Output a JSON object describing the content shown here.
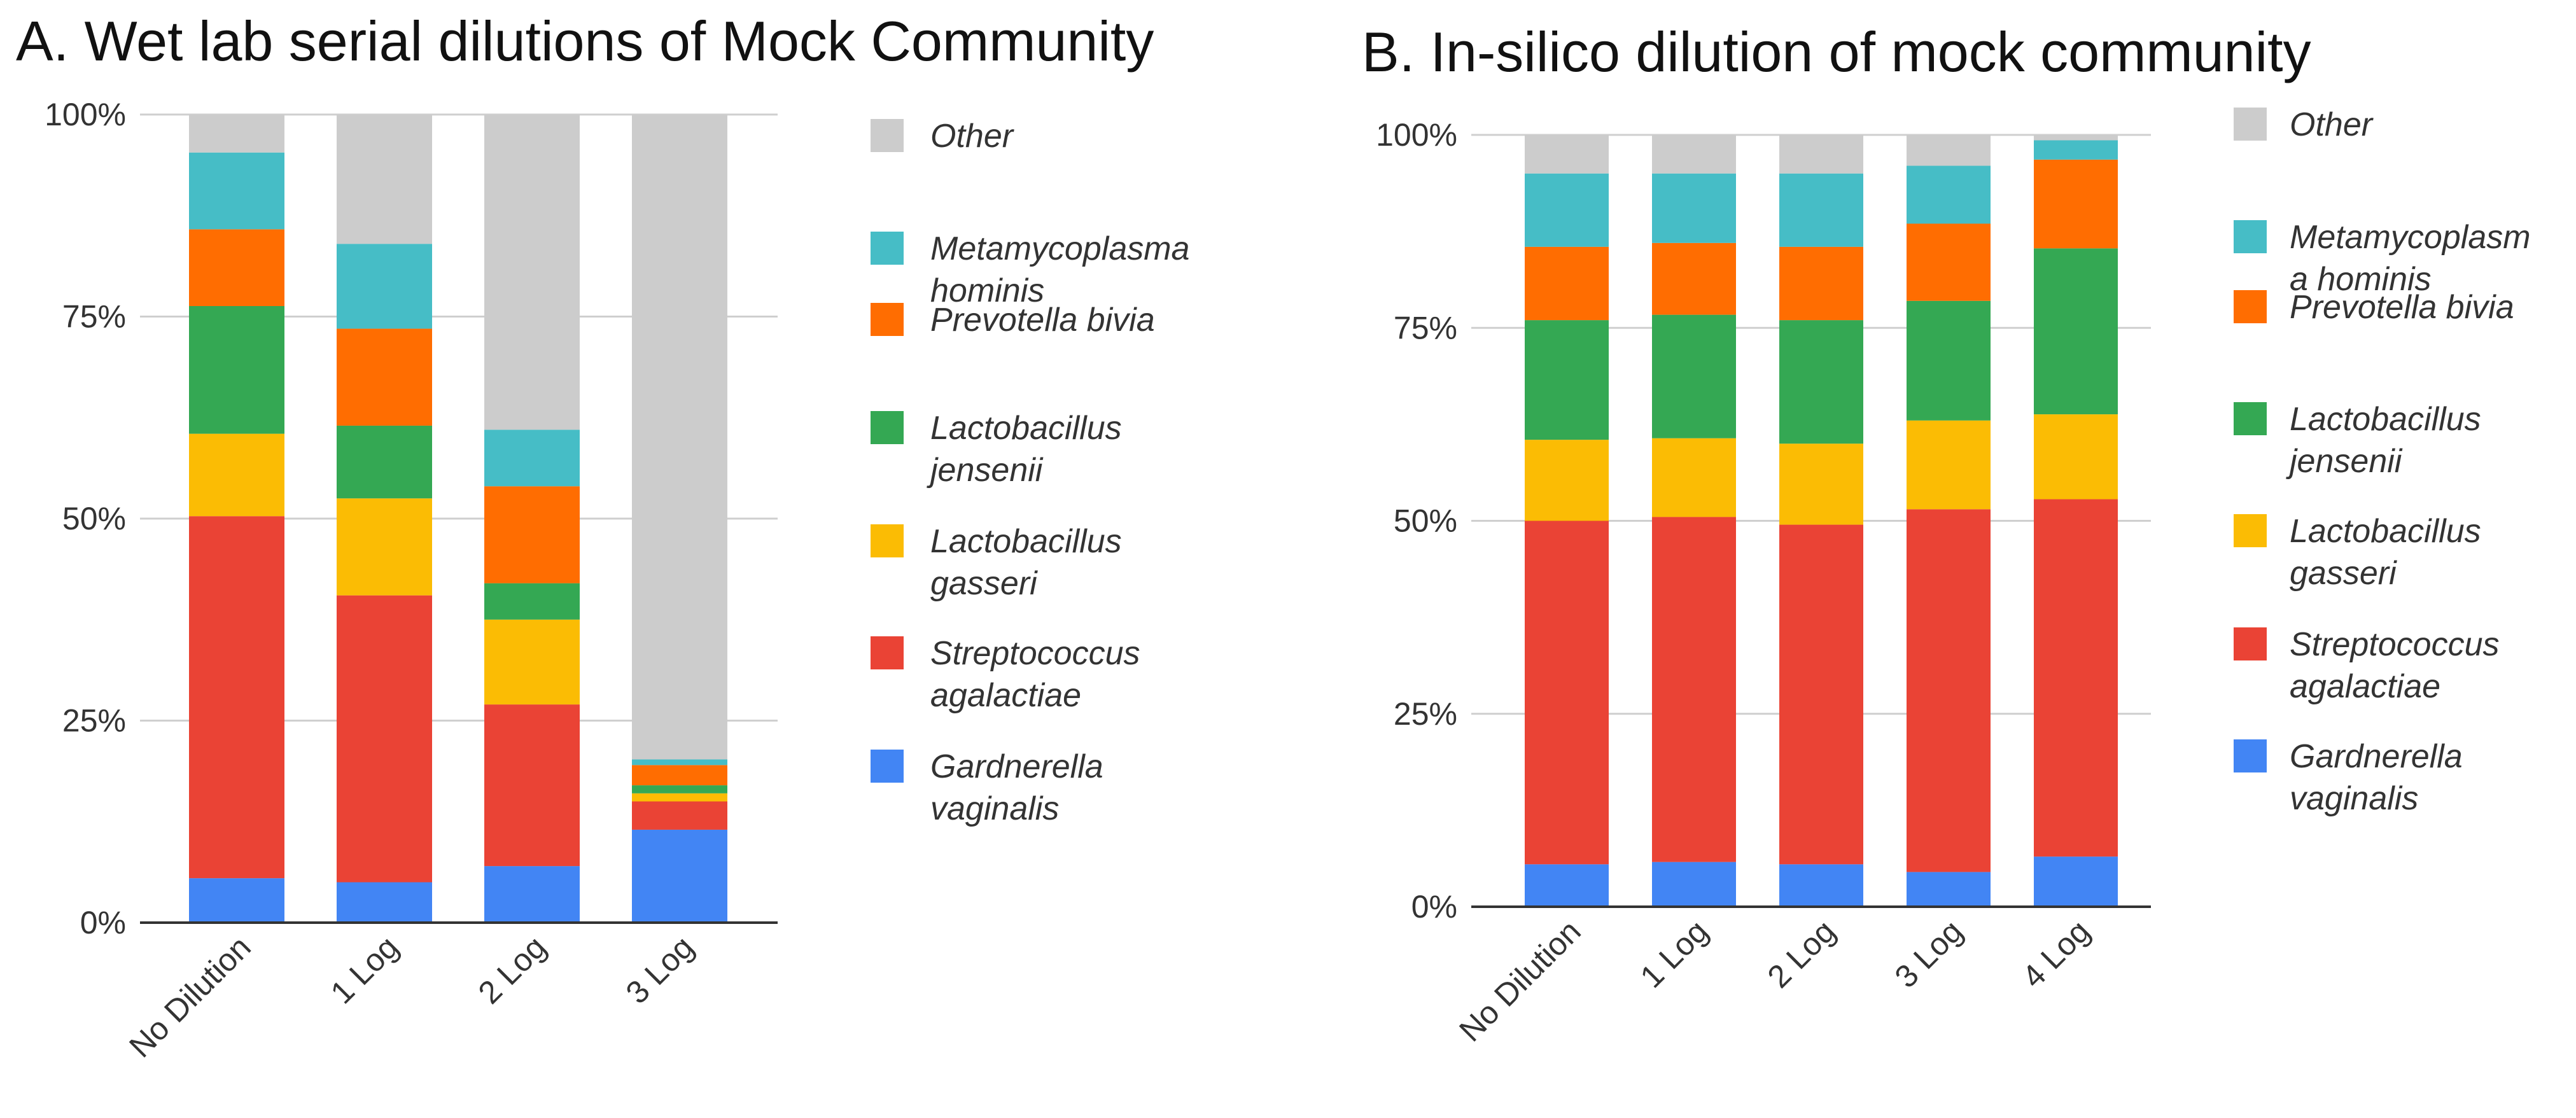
{
  "chart_data": [
    {
      "type": "bar",
      "stacked": true,
      "title": "A. Wet lab serial dilutions of Mock Community",
      "categories": [
        "No Dilution",
        "1 Log",
        "2 Log",
        "3 Log"
      ],
      "y_ticks": [
        "0%",
        "25%",
        "50%",
        "75%",
        "100%"
      ],
      "ylim": [
        0,
        100
      ],
      "series": [
        {
          "name": "Gardnerella vaginalis",
          "legend_lines": [
            "Gardnerella",
            "vaginalis"
          ],
          "color": "#4285F4",
          "values": [
            5.5,
            5.0,
            7.0,
            11.5
          ]
        },
        {
          "name": "Streptococcus agalactiae",
          "legend_lines": [
            "Streptococcus",
            "agalactiae"
          ],
          "color": "#EA4335",
          "values": [
            44.8,
            35.5,
            20.0,
            3.5
          ]
        },
        {
          "name": "Lactobacillus gasseri",
          "legend_lines": [
            "Lactobacillus",
            "gasseri"
          ],
          "color": "#FBBC04",
          "values": [
            10.2,
            12.0,
            10.5,
            1.0
          ]
        },
        {
          "name": "Lactobacillus jensenii",
          "legend_lines": [
            "Lactobacillus",
            "jensenii"
          ],
          "color": "#34A853",
          "values": [
            15.8,
            9.0,
            4.5,
            1.0
          ]
        },
        {
          "name": "Prevotella bivia",
          "legend_lines": [
            "Prevotella bivia"
          ],
          "color": "#FF6D01",
          "values": [
            9.5,
            12.0,
            12.0,
            2.5
          ]
        },
        {
          "name": "Metamycoplasma hominis",
          "legend_lines": [
            "Metamycoplasma",
            "hominis"
          ],
          "color": "#46BDC6",
          "values": [
            9.5,
            10.5,
            7.0,
            0.7
          ]
        },
        {
          "name": "Other",
          "legend_lines": [
            "Other"
          ],
          "color": "#CCCCCC",
          "values": [
            4.7,
            16.0,
            39.0,
            79.8
          ]
        }
      ]
    },
    {
      "type": "bar",
      "stacked": true,
      "title": "B. In-silico dilution of mock community",
      "categories": [
        "No Dilution",
        "1 Log",
        "2 Log",
        "3 Log",
        "4 Log"
      ],
      "y_ticks": [
        "0%",
        "25%",
        "50%",
        "75%",
        "100%"
      ],
      "ylim": [
        0,
        100
      ],
      "series": [
        {
          "name": "Gardnerella vaginalis",
          "legend_lines": [
            "Gardnerella",
            "vaginalis"
          ],
          "color": "#4285F4",
          "values": [
            5.5,
            5.8,
            5.5,
            4.5,
            6.5
          ]
        },
        {
          "name": "Streptococcus agalactiae",
          "legend_lines": [
            "Streptococcus",
            "agalactiae"
          ],
          "color": "#EA4335",
          "values": [
            44.5,
            44.7,
            44.0,
            47.0,
            46.3
          ]
        },
        {
          "name": "Lactobacillus gasseri",
          "legend_lines": [
            "Lactobacillus",
            "gasseri"
          ],
          "color": "#FBBC04",
          "values": [
            10.5,
            10.2,
            10.5,
            11.5,
            11.0
          ]
        },
        {
          "name": "Lactobacillus jensenii",
          "legend_lines": [
            "Lactobacillus",
            "jensenii"
          ],
          "color": "#34A853",
          "values": [
            15.5,
            16.0,
            16.0,
            15.5,
            21.5
          ]
        },
        {
          "name": "Prevotella bivia",
          "legend_lines": [
            "Prevotella bivia"
          ],
          "color": "#FF6D01",
          "values": [
            9.5,
            9.3,
            9.5,
            10.0,
            11.5
          ]
        },
        {
          "name": "Metamycoplasma hominis",
          "legend_lines": [
            "Metamycoplasm",
            "a hominis"
          ],
          "color": "#46BDC6",
          "values": [
            9.5,
            9.0,
            9.5,
            7.5,
            2.5
          ]
        },
        {
          "name": "Other",
          "legend_lines": [
            "Other"
          ],
          "color": "#CCCCCC",
          "values": [
            5.0,
            5.0,
            5.0,
            4.0,
            0.7
          ]
        }
      ]
    }
  ]
}
